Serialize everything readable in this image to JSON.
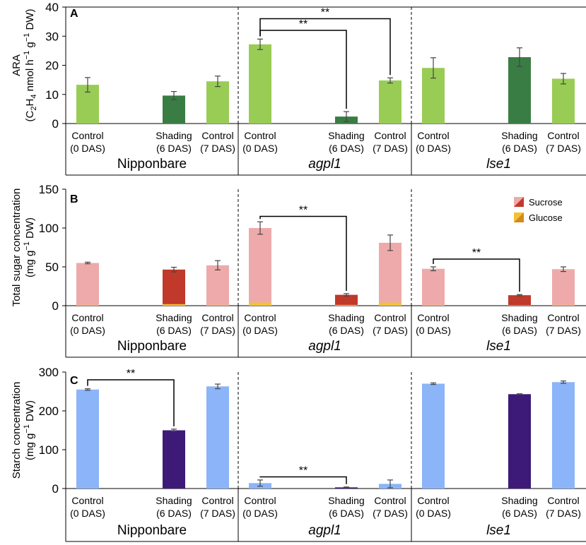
{
  "chart_data": [
    {
      "panel": "A",
      "type": "bar",
      "ylabel_line1": "ARA",
      "ylabel_line2_parts": [
        "(C",
        "2",
        "H",
        "4",
        " nmol h",
        "−1",
        " g",
        "−1",
        " DW)"
      ],
      "ylim": [
        0,
        40
      ],
      "yticks": [
        0,
        10,
        20,
        30,
        40
      ],
      "groups": [
        {
          "name": "Nipponbare",
          "italic": false,
          "bars": [
            {
              "l1": "Control",
              "l2": "(0 DAS)",
              "value": 13.3,
              "err": 2.5,
              "shade": "light"
            },
            {
              "l1": "Shading",
              "l2": "(6 DAS)",
              "value": 9.6,
              "err": 1.4,
              "shade": "dark"
            },
            {
              "l1": "Control",
              "l2": "(7 DAS)",
              "value": 14.5,
              "err": 1.8,
              "shade": "light"
            }
          ]
        },
        {
          "name": "agpl1",
          "italic": true,
          "bars": [
            {
              "l1": "Control",
              "l2": "(0 DAS)",
              "value": 27.2,
              "err": 1.8,
              "shade": "light"
            },
            {
              "l1": "Shading",
              "l2": "(6 DAS)",
              "value": 2.4,
              "err": 1.7,
              "shade": "dark"
            },
            {
              "l1": "Control",
              "l2": "(7 DAS)",
              "value": 14.8,
              "err": 0.9,
              "shade": "light"
            }
          ]
        },
        {
          "name": "lse1",
          "italic": true,
          "bars": [
            {
              "l1": "Control",
              "l2": "(0 DAS)",
              "value": 19.1,
              "err": 3.5,
              "shade": "light"
            },
            {
              "l1": "Shading",
              "l2": "(6 DAS)",
              "value": 22.8,
              "err": 3.2,
              "shade": "dark"
            },
            {
              "l1": "Control",
              "l2": "(7 DAS)",
              "value": 15.4,
              "err": 1.8,
              "shade": "light"
            }
          ]
        }
      ],
      "significance": [
        {
          "label": "**",
          "group": 1,
          "from": 0,
          "to": 1,
          "level": 32
        },
        {
          "label": "**",
          "group": 1,
          "from": 0,
          "to": 2,
          "level": 36
        }
      ]
    },
    {
      "panel": "B",
      "type": "stacked-bar",
      "ylabel_line1": "Total sugar concentration",
      "ylabel_line2_parts": [
        "(mg g",
        "−1",
        " DW)"
      ],
      "ylim": [
        0,
        150
      ],
      "yticks": [
        0,
        50,
        100,
        150
      ],
      "legend": [
        "Sucrose",
        "Glucose"
      ],
      "groups": [
        {
          "name": "Nipponbare",
          "italic": false,
          "bars": [
            {
              "l1": "Control",
              "l2": "(0 DAS)",
              "value": 55,
              "glucose": 1,
              "err": 1,
              "shade": "light"
            },
            {
              "l1": "Shading",
              "l2": "(6 DAS)",
              "value": 46.5,
              "glucose": 2,
              "err": 3,
              "shade": "dark"
            },
            {
              "l1": "Control",
              "l2": "(7 DAS)",
              "value": 52,
              "glucose": 1,
              "err": 6,
              "shade": "light"
            }
          ]
        },
        {
          "name": "agpl1",
          "italic": true,
          "bars": [
            {
              "l1": "Control",
              "l2": "(0 DAS)",
              "value": 100,
              "glucose": 4,
              "err": 8,
              "shade": "light"
            },
            {
              "l1": "Shading",
              "l2": "(6 DAS)",
              "value": 14,
              "glucose": 1,
              "err": 1.5,
              "shade": "dark"
            },
            {
              "l1": "Control",
              "l2": "(7 DAS)",
              "value": 81,
              "glucose": 4,
              "err": 10,
              "shade": "light"
            }
          ]
        },
        {
          "name": "lse1",
          "italic": true,
          "bars": [
            {
              "l1": "Control",
              "l2": "(0 DAS)",
              "value": 47.5,
              "glucose": 1,
              "err": 2.5,
              "shade": "light"
            },
            {
              "l1": "Shading",
              "l2": "(6 DAS)",
              "value": 13.5,
              "glucose": 0.5,
              "err": 0.8,
              "shade": "dark"
            },
            {
              "l1": "Control",
              "l2": "(7 DAS)",
              "value": 47,
              "glucose": 1,
              "err": 3,
              "shade": "light"
            }
          ]
        }
      ],
      "significance": [
        {
          "label": "**",
          "group": 1,
          "from": 0,
          "to": 1,
          "level": 115
        },
        {
          "label": "**",
          "group": 2,
          "from": 0,
          "to": 1,
          "level": 60
        }
      ]
    },
    {
      "panel": "C",
      "type": "bar",
      "ylabel_line1": "Starch concentration",
      "ylabel_line2_parts": [
        "(mg g",
        "−1",
        " DW)"
      ],
      "ylim": [
        0,
        300
      ],
      "yticks": [
        0,
        100,
        200,
        300
      ],
      "groups": [
        {
          "name": "Nipponbare",
          "italic": false,
          "bars": [
            {
              "l1": "Control",
              "l2": "(0 DAS)",
              "value": 255,
              "err": 2,
              "shade": "light"
            },
            {
              "l1": "Shading",
              "l2": "(6 DAS)",
              "value": 150,
              "err": 3,
              "shade": "dark"
            },
            {
              "l1": "Control",
              "l2": "(7 DAS)",
              "value": 263,
              "err": 6,
              "shade": "light"
            }
          ]
        },
        {
          "name": "agpl1",
          "italic": true,
          "bars": [
            {
              "l1": "Control",
              "l2": "(0 DAS)",
              "value": 14,
              "err": 8,
              "shade": "light"
            },
            {
              "l1": "Shading",
              "l2": "(6 DAS)",
              "value": 3,
              "err": 1,
              "shade": "dark"
            },
            {
              "l1": "Control",
              "l2": "(7 DAS)",
              "value": 12,
              "err": 10,
              "shade": "light"
            }
          ]
        },
        {
          "name": "lse1",
          "italic": true,
          "bars": [
            {
              "l1": "Control",
              "l2": "(0 DAS)",
              "value": 270,
              "err": 2,
              "shade": "light"
            },
            {
              "l1": "Shading",
              "l2": "(6 DAS)",
              "value": 243,
              "err": 1,
              "shade": "dark"
            },
            {
              "l1": "Control",
              "l2": "(7 DAS)",
              "value": 274,
              "err": 3,
              "shade": "light"
            }
          ]
        }
      ],
      "significance": [
        {
          "label": "**",
          "group": 0,
          "from": 0,
          "to": 1,
          "level": 280
        },
        {
          "label": "**",
          "group": 1,
          "from": 0,
          "to": 1,
          "level": 30
        }
      ]
    }
  ],
  "colors": {
    "A_light": "#99cc55",
    "A_dark": "#3a7d44",
    "B_light": "#eeaaaa",
    "B_dark": "#c0392b",
    "B_glucose": "#f1c232",
    "B_glucose_edge": "#d4891a",
    "C_light": "#8cb4f8",
    "C_dark": "#3d1a78",
    "error": "#444444"
  }
}
